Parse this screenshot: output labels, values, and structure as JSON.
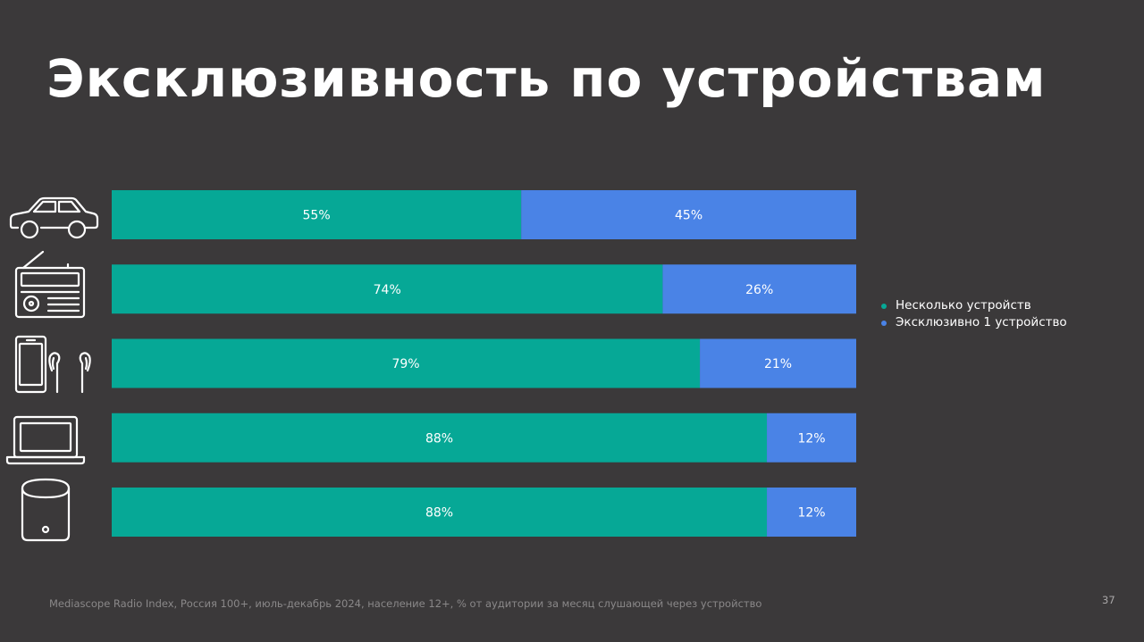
{
  "title": "Эксклюзивность по устройствам",
  "colors": {
    "background": "#3b393a",
    "multiple_devices": "#06a896",
    "exclusive_one_device": "#4a83e6",
    "icon_stroke": "#ffffff"
  },
  "devices": [
    {
      "icon": "car-icon"
    },
    {
      "icon": "radio-icon"
    },
    {
      "icon": "smartphone-earbuds-icon"
    },
    {
      "icon": "laptop-icon"
    },
    {
      "icon": "smart-speaker-icon"
    }
  ],
  "chart_data": {
    "type": "bar",
    "orientation": "horizontal",
    "stacked": true,
    "normalized": true,
    "categories": [
      "",
      "",
      "",
      "",
      ""
    ],
    "series": [
      {
        "name": "Несколько устройств",
        "values": [
          55,
          74,
          79,
          88,
          88
        ],
        "labels": [
          "55%",
          "74%",
          "79%",
          "88%",
          "88%"
        ]
      },
      {
        "name": "Эксклюзивно 1 устройство",
        "values": [
          45,
          26,
          21,
          12,
          12
        ],
        "labels": [
          "45%",
          "26%",
          "21%",
          "12%",
          "12%"
        ]
      }
    ],
    "xlim": [
      0,
      100
    ],
    "grid": false,
    "legend_position": "right"
  },
  "legend": {
    "items": [
      {
        "label": "Несколько устройств",
        "color": "#06a896"
      },
      {
        "label": "Эксклюзивно 1 устройство",
        "color": "#4a83e6"
      }
    ]
  },
  "footnote": "Mediascope Radio Index, Россия 100+, июль-декабрь 2024, население 12+, % от аудитории за месяц слушающей через устройство",
  "page_number": "37"
}
